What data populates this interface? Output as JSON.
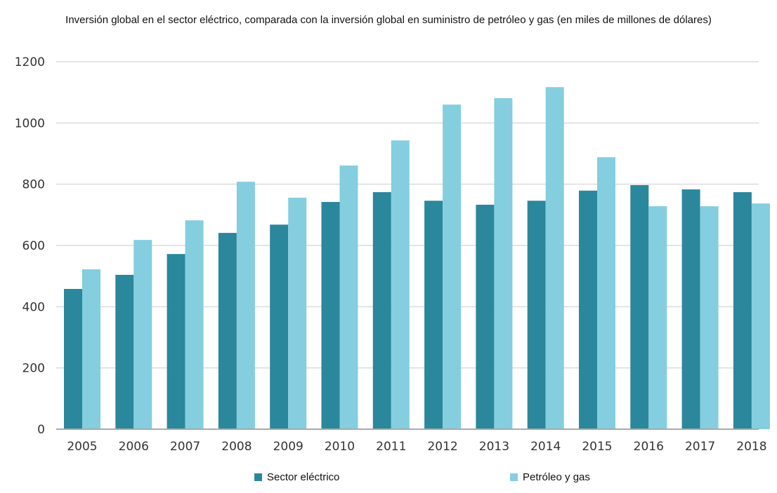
{
  "chart_data": {
    "type": "bar",
    "title": "Inversión global en el sector eléctrico, comparada con la inversión global en suministro de petróleo y gas  (en miles de millones de dólares)",
    "xlabel": "",
    "ylabel": "",
    "ylim": [
      0,
      1200
    ],
    "yticks": [
      0,
      200,
      400,
      600,
      800,
      1000,
      1200
    ],
    "grid": true,
    "legend_position": "bottom",
    "categories": [
      "2005",
      "2006",
      "2007",
      "2008",
      "2009",
      "2010",
      "2011",
      "2012",
      "2013",
      "2014",
      "2015",
      "2016",
      "2017",
      "2018"
    ],
    "series": [
      {
        "name": "Sector eléctrico",
        "color": "#2b879b",
        "values": [
          458,
          504,
          572,
          641,
          668,
          742,
          774,
          746,
          733,
          746,
          779,
          797,
          783,
          774
        ]
      },
      {
        "name": "Petróleo y gas",
        "color": "#84cee0",
        "values": [
          522,
          618,
          682,
          808,
          756,
          861,
          943,
          1060,
          1081,
          1117,
          888,
          728,
          728,
          737
        ]
      }
    ]
  }
}
